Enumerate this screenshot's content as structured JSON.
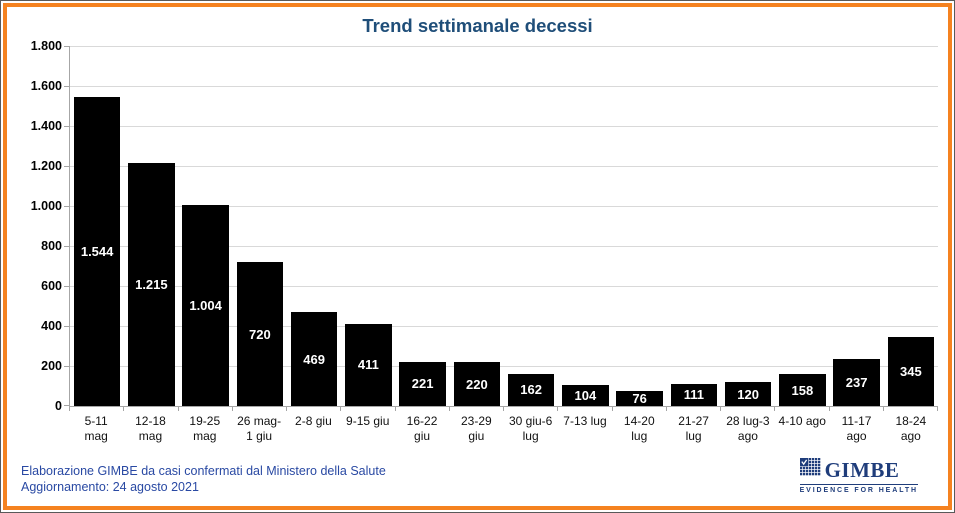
{
  "title": "Trend settimanale decessi",
  "chart_data": {
    "type": "bar",
    "title": "Trend settimanale decessi",
    "categories": [
      "5-11 mag",
      "12-18 mag",
      "19-25 mag",
      "26 mag-1 giu",
      "2-8 giu",
      "9-15 giu",
      "16-22 giu",
      "23-29 giu",
      "30 giu-6 lug",
      "7-13 lug",
      "14-20 lug",
      "21-27 lug",
      "28 lug-3 ago",
      "4-10 ago",
      "11-17 ago",
      "18-24 ago"
    ],
    "category_labels": [
      "5-11\nmag",
      "12-18\nmag",
      "19-25\nmag",
      "26 mag-\n1 giu",
      "2-8 giu",
      "9-15 giu",
      "16-22\ngiu",
      "23-29\ngiu",
      "30 giu-6\nlug",
      "7-13 lug",
      "14-20\nlug",
      "21-27\nlug",
      "28 lug-3\nago",
      "4-10 ago",
      "11-17\nago",
      "18-24\nago"
    ],
    "values": [
      1544,
      1215,
      1004,
      720,
      469,
      411,
      221,
      220,
      162,
      104,
      76,
      111,
      120,
      158,
      237,
      345
    ],
    "value_labels": [
      "1.544",
      "1.215",
      "1.004",
      "720",
      "469",
      "411",
      "221",
      "220",
      "162",
      "104",
      "76",
      "111",
      "120",
      "158",
      "237",
      "345"
    ],
    "xlabel": "",
    "ylabel": "",
    "ylim": [
      0,
      1800
    ],
    "y_ticks": [
      "0",
      "200",
      "400",
      "600",
      "800",
      "1.000",
      "1.200",
      "1.400",
      "1.600",
      "1.800"
    ],
    "grid": true,
    "legend_position": "none",
    "bar_color": "#000000",
    "value_label_color": "#FFFFFF"
  },
  "footer": {
    "line1": "Elaborazione GIMBE da casi confermati dal Ministero della Salute",
    "line2": "Aggiornamento: 24 agosto 2021"
  },
  "logo": {
    "name": "GIMBE",
    "tagline": "EVIDENCE FOR HEALTH"
  },
  "colors": {
    "frame_border": "#F58220",
    "title": "#1F4E79",
    "footer_text": "#2949A3",
    "logo_navy": "#1F3D7B",
    "gridline": "#D9D9D9",
    "axis": "#A6A6A6"
  }
}
